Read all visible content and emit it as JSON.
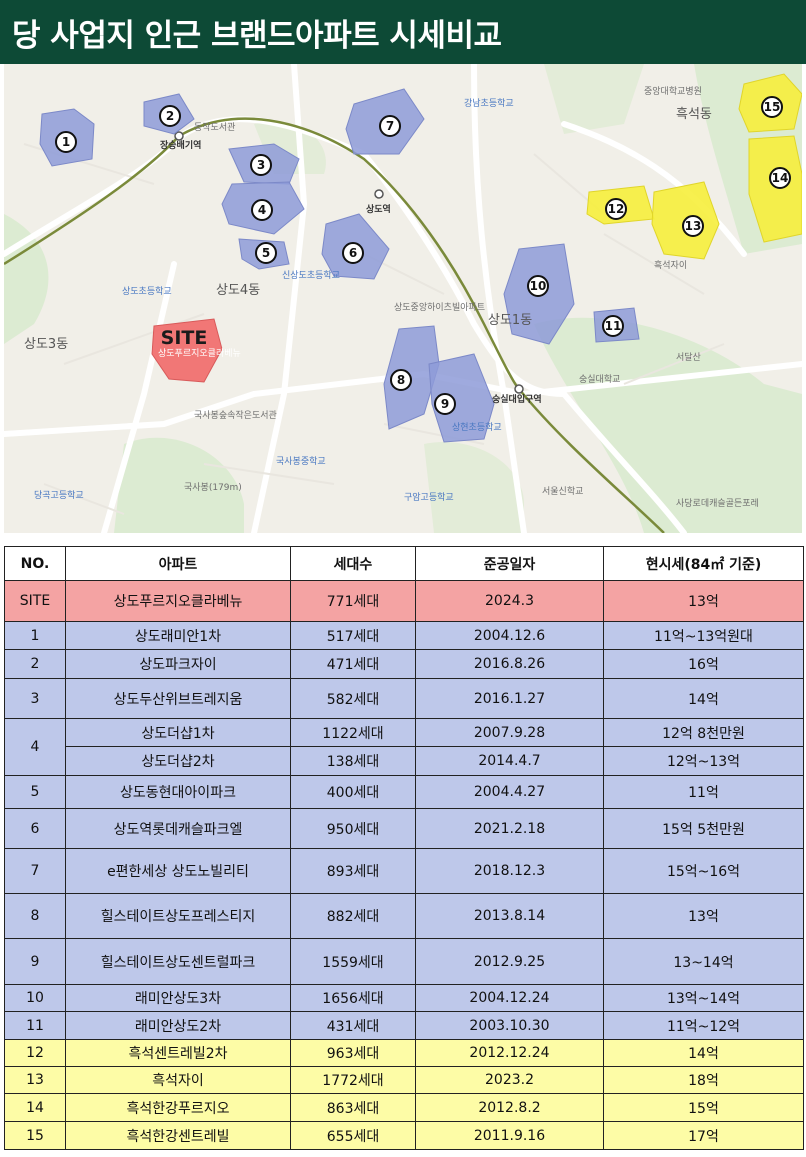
{
  "title": "당 사업지 인근 브랜드아파트 시세비교",
  "map": {
    "site_label": "SITE",
    "site_sublabel": "상도푸르지오클라베뉴",
    "marker_numbers": [
      "1",
      "2",
      "3",
      "4",
      "5",
      "6",
      "7",
      "8",
      "9",
      "10",
      "11",
      "12",
      "13",
      "14",
      "15"
    ],
    "place_labels": [
      "상도3동",
      "상도4동",
      "상도1동",
      "흑석동",
      "장승배기역",
      "상도역",
      "숭실대입구역",
      "상도초등학교",
      "국사봉(179m)",
      "국사봉숲속작은도서관",
      "국사봉중학교",
      "상도중앙하이츠빌아파트",
      "숭실대학교",
      "서달산",
      "신상도초등학교",
      "강남초등학교",
      "구암고등학교",
      "당곡고등학교",
      "서울신학교",
      "중앙대학교병원",
      "흑석자이",
      "상현초등학교",
      "동작도서관",
      "사당로데캐슬골든포레"
    ]
  },
  "table": {
    "headers": [
      "NO.",
      "아파트",
      "세대수",
      "준공일자",
      "현시세(84㎡ 기준)"
    ],
    "site_row": {
      "no": "SITE",
      "name": "상도푸르지오클라베뉴",
      "units": "771세대",
      "date": "2024.3",
      "price": "13억"
    },
    "rows": [
      {
        "no": "1",
        "name": "상도래미안1차",
        "units": "517세대",
        "date": "2004.12.6",
        "price": "11억~13억원대",
        "group": "blue"
      },
      {
        "no": "2",
        "name": "상도파크자이",
        "units": "471세대",
        "date": "2016.8.26",
        "price": "16억",
        "group": "blue"
      },
      {
        "no": "3",
        "name": "상도두산위브트레지움",
        "units": "582세대",
        "date": "2016.1.27",
        "price": "14억",
        "group": "blue"
      },
      {
        "no": "4",
        "name": "상도더샵1차",
        "units": "1122세대",
        "date": "2007.9.28",
        "price": "12억 8천만원",
        "group": "blue"
      },
      {
        "no": "",
        "name": "상도더샵2차",
        "units": "138세대",
        "date": "2014.4.7",
        "price": "12억~13억",
        "group": "blue"
      },
      {
        "no": "5",
        "name": "상도동현대아이파크",
        "units": "400세대",
        "date": "2004.4.27",
        "price": "11억",
        "group": "blue"
      },
      {
        "no": "6",
        "name": "상도역롯데캐슬파크엘",
        "units": "950세대",
        "date": "2021.2.18",
        "price": "15억 5천만원",
        "group": "blue"
      },
      {
        "no": "7",
        "name": "e편한세상 상도노빌리티",
        "units": "893세대",
        "date": "2018.12.3",
        "price": "15억~16억",
        "group": "blue"
      },
      {
        "no": "8",
        "name": "힐스테이트상도프레스티지",
        "units": "882세대",
        "date": "2013.8.14",
        "price": "13억",
        "group": "blue"
      },
      {
        "no": "9",
        "name": "힐스테이트상도센트럴파크",
        "units": "1559세대",
        "date": "2012.9.25",
        "price": "13~14억",
        "group": "blue"
      },
      {
        "no": "10",
        "name": "래미안상도3차",
        "units": "1656세대",
        "date": "2004.12.24",
        "price": "13억~14억",
        "group": "blue"
      },
      {
        "no": "11",
        "name": "래미안상도2차",
        "units": "431세대",
        "date": "2003.10.30",
        "price": "11억~12억",
        "group": "blue"
      },
      {
        "no": "12",
        "name": "흑석센트레빌2차",
        "units": "963세대",
        "date": "2012.12.24",
        "price": "14억",
        "group": "yellow"
      },
      {
        "no": "13",
        "name": "흑석자이",
        "units": "1772세대",
        "date": "2023.2",
        "price": "18억",
        "group": "yellow"
      },
      {
        "no": "14",
        "name": "흑석한강푸르지오",
        "units": "863세대",
        "date": "2012.8.2",
        "price": "15억",
        "group": "yellow"
      },
      {
        "no": "15",
        "name": "흑석한강센트레빌",
        "units": "655세대",
        "date": "2011.9.16",
        "price": "17억",
        "group": "yellow"
      }
    ]
  },
  "colors": {
    "title_bg": "#0d4a36",
    "site_row": "#f4a3a3",
    "blue_row": "#bec8ea",
    "yellow_row": "#fdfca6",
    "blue_area": "#8e9bd8",
    "yellow_area": "#f6ee3c",
    "site_area": "#f07070"
  }
}
